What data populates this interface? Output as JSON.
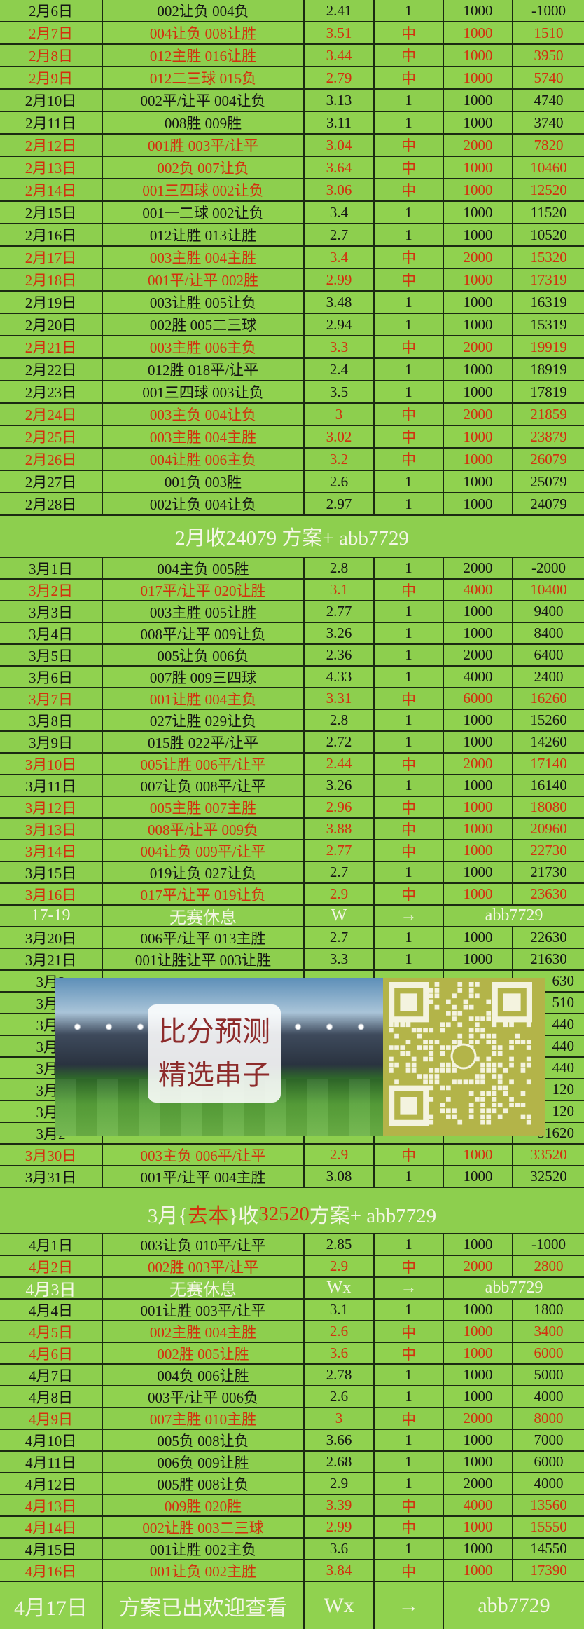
{
  "colors": {
    "background": "#8dcf4e",
    "hit_text": "#d3300e",
    "normal_text": "#141414",
    "special_text": "#f4f6e6",
    "grid": "#1b2a12"
  },
  "february": {
    "rows": [
      {
        "date": "2月6日",
        "picks": "002让负  004负",
        "odds": "2.41",
        "result": "1",
        "stake": "1000",
        "balance": "-1000",
        "hit": false
      },
      {
        "date": "2月7日",
        "picks": "004让负  008让胜",
        "odds": "3.51",
        "result": "中",
        "stake": "1000",
        "balance": "1510",
        "hit": true
      },
      {
        "date": "2月8日",
        "picks": "012主胜  016让胜",
        "odds": "3.44",
        "result": "中",
        "stake": "1000",
        "balance": "3950",
        "hit": true
      },
      {
        "date": "2月9日",
        "picks": "012二三球  015负",
        "odds": "2.79",
        "result": "中",
        "stake": "1000",
        "balance": "5740",
        "hit": true
      },
      {
        "date": "2月10日",
        "picks": "002平/让平  004让负",
        "odds": "3.13",
        "result": "1",
        "stake": "1000",
        "balance": "4740",
        "hit": false
      },
      {
        "date": "2月11日",
        "picks": "008胜  009胜",
        "odds": "3.11",
        "result": "1",
        "stake": "1000",
        "balance": "3740",
        "hit": false
      },
      {
        "date": "2月12日",
        "picks": "001胜  003平/让平",
        "odds": "3.04",
        "result": "中",
        "stake": "2000",
        "balance": "7820",
        "hit": true
      },
      {
        "date": "2月13日",
        "picks": "002负  007让负",
        "odds": "3.64",
        "result": "中",
        "stake": "1000",
        "balance": "10460",
        "hit": true
      },
      {
        "date": "2月14日",
        "picks": "001三四球  002让负",
        "odds": "3.06",
        "result": "中",
        "stake": "1000",
        "balance": "12520",
        "hit": true
      },
      {
        "date": "2月15日",
        "picks": "001一二球  002让负",
        "odds": "3.4",
        "result": "1",
        "stake": "1000",
        "balance": "11520",
        "hit": false
      },
      {
        "date": "2月16日",
        "picks": "012让胜  013让胜",
        "odds": "2.7",
        "result": "1",
        "stake": "1000",
        "balance": "10520",
        "hit": false
      },
      {
        "date": "2月17日",
        "picks": "003主胜  004主胜",
        "odds": "3.4",
        "result": "中",
        "stake": "2000",
        "balance": "15320",
        "hit": true
      },
      {
        "date": "2月18日",
        "picks": "001平/让平  002胜",
        "odds": "2.99",
        "result": "中",
        "stake": "1000",
        "balance": "17319",
        "hit": true
      },
      {
        "date": "2月19日",
        "picks": "003让胜  005让负",
        "odds": "3.48",
        "result": "1",
        "stake": "1000",
        "balance": "16319",
        "hit": false
      },
      {
        "date": "2月20日",
        "picks": "002胜  005二三球",
        "odds": "2.94",
        "result": "1",
        "stake": "1000",
        "balance": "15319",
        "hit": false
      },
      {
        "date": "2月21日",
        "picks": "003主胜  006主负",
        "odds": "3.3",
        "result": "中",
        "stake": "2000",
        "balance": "19919",
        "hit": true
      },
      {
        "date": "2月22日",
        "picks": "012胜  018平/让平",
        "odds": "2.4",
        "result": "1",
        "stake": "1000",
        "balance": "18919",
        "hit": false
      },
      {
        "date": "2月23日",
        "picks": "001三四球  003让负",
        "odds": "3.5",
        "result": "1",
        "stake": "1000",
        "balance": "17819",
        "hit": false
      },
      {
        "date": "2月24日",
        "picks": "003主负  004让负",
        "odds": "3",
        "result": "中",
        "stake": "2000",
        "balance": "21859",
        "hit": true
      },
      {
        "date": "2月25日",
        "picks": "003主胜  004主胜",
        "odds": "3.02",
        "result": "中",
        "stake": "1000",
        "balance": "23879",
        "hit": true
      },
      {
        "date": "2月26日",
        "picks": "004让胜  006主负",
        "odds": "3.2",
        "result": "中",
        "stake": "1000",
        "balance": "26079",
        "hit": true
      },
      {
        "date": "2月27日",
        "picks": "001负  003胜",
        "odds": "2.6",
        "result": "1",
        "stake": "1000",
        "balance": "25079",
        "hit": false
      },
      {
        "date": "2月28日",
        "picks": "002让负  004让负",
        "odds": "2.97",
        "result": "1",
        "stake": "1000",
        "balance": "24079",
        "hit": false
      }
    ]
  },
  "feb_summary": {
    "text": "2月收24079  方案+ abb7729"
  },
  "march": {
    "rows": [
      {
        "date": "3月1日",
        "picks": "004主负  005胜",
        "odds": "2.8",
        "result": "1",
        "stake": "2000",
        "balance": "-2000",
        "hit": false
      },
      {
        "date": "3月2日",
        "picks": "017平/让平  020让胜",
        "odds": "3.1",
        "result": "中",
        "stake": "4000",
        "balance": "10400",
        "hit": true
      },
      {
        "date": "3月3日",
        "picks": "003主胜  005让胜",
        "odds": "2.77",
        "result": "1",
        "stake": "1000",
        "balance": "9400",
        "hit": false
      },
      {
        "date": "3月4日",
        "picks": "008平/让平  009让负",
        "odds": "3.26",
        "result": "1",
        "stake": "1000",
        "balance": "8400",
        "hit": false
      },
      {
        "date": "3月5日",
        "picks": "005让负  006负",
        "odds": "2.36",
        "result": "1",
        "stake": "2000",
        "balance": "6400",
        "hit": false
      },
      {
        "date": "3月6日",
        "picks": "007胜  009三四球",
        "odds": "4.33",
        "result": "1",
        "stake": "4000",
        "balance": "2400",
        "hit": false
      },
      {
        "date": "3月7日",
        "picks": "001让胜  004主负",
        "odds": "3.31",
        "result": "中",
        "stake": "6000",
        "balance": "16260",
        "hit": true
      },
      {
        "date": "3月8日",
        "picks": "027让胜  029让负",
        "odds": "2.8",
        "result": "1",
        "stake": "1000",
        "balance": "15260",
        "hit": false
      },
      {
        "date": "3月9日",
        "picks": "015胜  022平/让平",
        "odds": "2.72",
        "result": "1",
        "stake": "1000",
        "balance": "14260",
        "hit": false
      },
      {
        "date": "3月10日",
        "picks": "005让胜  006平/让平",
        "odds": "2.44",
        "result": "中",
        "stake": "2000",
        "balance": "17140",
        "hit": true
      },
      {
        "date": "3月11日",
        "picks": "007让负  008平/让平",
        "odds": "3.26",
        "result": "1",
        "stake": "1000",
        "balance": "16140",
        "hit": false
      },
      {
        "date": "3月12日",
        "picks": "005主胜  007主胜",
        "odds": "2.96",
        "result": "中",
        "stake": "1000",
        "balance": "18080",
        "hit": true
      },
      {
        "date": "3月13日",
        "picks": "008平/让平  009负",
        "odds": "3.88",
        "result": "中",
        "stake": "1000",
        "balance": "20960",
        "hit": true
      },
      {
        "date": "3月14日",
        "picks": "004让负  009平/让平",
        "odds": "2.77",
        "result": "中",
        "stake": "1000",
        "balance": "22730",
        "hit": true
      },
      {
        "date": "3月15日",
        "picks": "019让负  027让负",
        "odds": "2.7",
        "result": "1",
        "stake": "1000",
        "balance": "21730",
        "hit": false
      },
      {
        "date": "3月16日",
        "picks": "017平/让平  019让负",
        "odds": "2.9",
        "result": "中",
        "stake": "1000",
        "balance": "23630",
        "hit": true
      },
      {
        "special": true,
        "date": "17-19",
        "picks": "无赛休息",
        "odds": "W",
        "result": "→",
        "contact": "abb7729"
      },
      {
        "date": "3月20日",
        "picks": "006平/让平  013主胜",
        "odds": "2.7",
        "result": "1",
        "stake": "1000",
        "balance": "22630",
        "hit": false
      },
      {
        "date": "3月21日",
        "picks": "001让胜让平  003让胜",
        "odds": "3.3",
        "result": "1",
        "stake": "1000",
        "balance": "21630",
        "hit": false
      },
      {
        "obscured": true,
        "date": "3月2",
        "balance": "630",
        "hit": false
      },
      {
        "obscured": true,
        "date": "3月2",
        "balance": "510",
        "hit": true
      },
      {
        "obscured": true,
        "date": "3月2",
        "balance": "440",
        "hit": true
      },
      {
        "obscured": true,
        "date": "3月2",
        "balance": "440",
        "hit": false
      },
      {
        "obscured": true,
        "date": "3月2",
        "balance": "440",
        "hit": false
      },
      {
        "obscured": true,
        "date": "3月2",
        "balance": "120",
        "hit": true
      },
      {
        "obscured": true,
        "date": "3月2",
        "balance": "120",
        "hit": false
      },
      {
        "obscured": true,
        "date": "3月2",
        "balance": "31620",
        "hit": true
      },
      {
        "date": "3月30日",
        "picks": "003主负  006平/让平",
        "odds": "2.9",
        "result": "中",
        "stake": "1000",
        "balance": "33520",
        "hit": true
      },
      {
        "date": "3月31日",
        "picks": "001平/让平  004主胜",
        "odds": "3.08",
        "result": "1",
        "stake": "1000",
        "balance": "32520",
        "hit": false
      }
    ]
  },
  "mar_summary": {
    "prefix": "3月{",
    "highlight1": "去本",
    "mid": "}收",
    "highlight2": "32520",
    "suffix": "  方案+ abb7729"
  },
  "april": {
    "rows": [
      {
        "date": "4月1日",
        "picks": "003让负  010平/让平",
        "odds": "2.85",
        "result": "1",
        "stake": "1000",
        "balance": "-1000",
        "hit": false
      },
      {
        "date": "4月2日",
        "picks": "002胜  003平/让平",
        "odds": "2.9",
        "result": "中",
        "stake": "2000",
        "balance": "2800",
        "hit": true
      },
      {
        "special": true,
        "date": "4月3日",
        "picks": "无赛休息",
        "odds": "Wx",
        "result": "→",
        "contact": "abb7729"
      },
      {
        "date": "4月4日",
        "picks": "001让胜  003平/让平",
        "odds": "3.1",
        "result": "1",
        "stake": "1000",
        "balance": "1800",
        "hit": false
      },
      {
        "date": "4月5日",
        "picks": "002主胜  004主胜",
        "odds": "2.6",
        "result": "中",
        "stake": "1000",
        "balance": "3400",
        "hit": true
      },
      {
        "date": "4月6日",
        "picks": "002胜  005让胜",
        "odds": "3.6",
        "result": "中",
        "stake": "1000",
        "balance": "6000",
        "hit": true
      },
      {
        "date": "4月7日",
        "picks": "004负  006让胜",
        "odds": "2.78",
        "result": "1",
        "stake": "1000",
        "balance": "5000",
        "hit": false
      },
      {
        "date": "4月8日",
        "picks": "003平/让平  006负",
        "odds": "2.6",
        "result": "1",
        "stake": "1000",
        "balance": "4000",
        "hit": false
      },
      {
        "date": "4月9日",
        "picks": "007主胜  010主胜",
        "odds": "3",
        "result": "中",
        "stake": "2000",
        "balance": "8000",
        "hit": true
      },
      {
        "date": "4月10日",
        "picks": "005负  008让负",
        "odds": "3.66",
        "result": "1",
        "stake": "1000",
        "balance": "7000",
        "hit": false
      },
      {
        "date": "4月11日",
        "picks": "006负  009让胜",
        "odds": "2.68",
        "result": "1",
        "stake": "1000",
        "balance": "6000",
        "hit": false
      },
      {
        "date": "4月12日",
        "picks": "005胜  008让负",
        "odds": "2.9",
        "result": "1",
        "stake": "2000",
        "balance": "4000",
        "hit": false
      },
      {
        "date": "4月13日",
        "picks": "009胜  020胜",
        "odds": "3.39",
        "result": "中",
        "stake": "4000",
        "balance": "13560",
        "hit": true
      },
      {
        "date": "4月14日",
        "picks": "002让胜  003二三球",
        "odds": "2.99",
        "result": "中",
        "stake": "1000",
        "balance": "15550",
        "hit": true
      },
      {
        "date": "4月15日",
        "picks": "001让胜  002主负",
        "odds": "3.6",
        "result": "1",
        "stake": "1000",
        "balance": "14550",
        "hit": false
      },
      {
        "date": "4月16日",
        "picks": "001让负  002主胜",
        "odds": "3.84",
        "result": "中",
        "stake": "1000",
        "balance": "17390",
        "hit": true
      }
    ]
  },
  "final_row": {
    "date": "4月17日",
    "picks": "方案已出欢迎查看",
    "odds": "Wx",
    "result": "→",
    "contact": "abb7729"
  },
  "promo": {
    "line1": "比分预测",
    "line2": "精选串子",
    "qr_icon": "wechat-qr-code-icon"
  }
}
